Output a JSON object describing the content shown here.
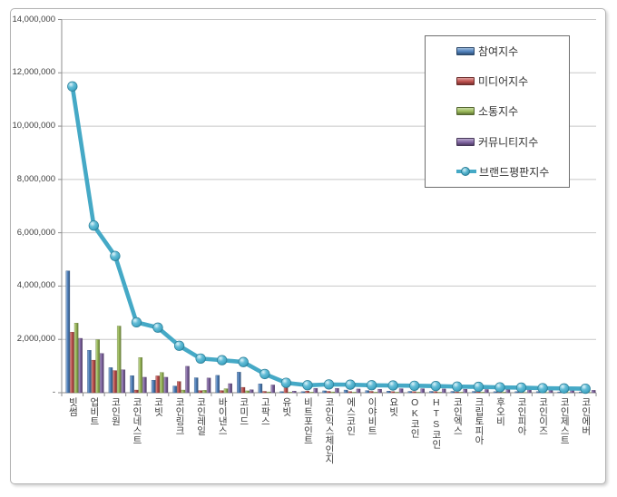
{
  "chart_data": {
    "type": "combo-bar-line",
    "categories": [
      "빗썸",
      "업비트",
      "코인원",
      "코인네스트",
      "코빗",
      "코인링크",
      "코인레일",
      "바이낸스",
      "코미드",
      "고팍스",
      "유빗",
      "비트포인트",
      "코인익스체인지",
      "에스코인",
      "이야비트",
      "요빗",
      "OK코인",
      "HTS코인",
      "코인엑스",
      "크립토피아",
      "후오비",
      "코인피아",
      "코인이즈",
      "코인제스트",
      "코인에버"
    ],
    "series": [
      {
        "key": "participation",
        "name": "참여지수",
        "type": "bar",
        "color": "#4F81BD",
        "values": [
          4570000,
          1590000,
          940000,
          640000,
          470000,
          250000,
          560000,
          650000,
          770000,
          330000,
          40000,
          40000,
          70000,
          100000,
          80000,
          60000,
          50000,
          50000,
          50000,
          50000,
          40000,
          40000,
          40000,
          30000,
          30000
        ]
      },
      {
        "key": "media",
        "name": "미디어지수",
        "type": "bar",
        "color": "#C0504D",
        "values": [
          2270000,
          1220000,
          830000,
          100000,
          630000,
          420000,
          80000,
          80000,
          200000,
          50000,
          250000,
          60000,
          50000,
          40000,
          50000,
          40000,
          40000,
          40000,
          30000,
          30000,
          30000,
          30000,
          20000,
          20000,
          20000
        ]
      },
      {
        "key": "communication",
        "name": "소통지수",
        "type": "bar",
        "color": "#9BBB59",
        "values": [
          2610000,
          1990000,
          2500000,
          1320000,
          760000,
          100000,
          90000,
          150000,
          70000,
          30000,
          20000,
          20000,
          30000,
          20000,
          20000,
          20000,
          20000,
          20000,
          20000,
          20000,
          20000,
          10000,
          10000,
          10000,
          10000
        ]
      },
      {
        "key": "community",
        "name": "커뮤니티지수",
        "type": "bar",
        "color": "#8064A2",
        "values": [
          2040000,
          1470000,
          860000,
          580000,
          580000,
          990000,
          550000,
          340000,
          110000,
          290000,
          60000,
          160000,
          160000,
          140000,
          130000,
          150000,
          150000,
          140000,
          130000,
          120000,
          110000,
          110000,
          100000,
          100000,
          90000
        ]
      },
      {
        "key": "brand",
        "name": "브랜드평판지수",
        "type": "line",
        "color": "#45A9C6",
        "values": [
          11490000,
          6270000,
          5130000,
          2640000,
          2440000,
          1760000,
          1280000,
          1220000,
          1150000,
          700000,
          370000,
          280000,
          310000,
          300000,
          280000,
          270000,
          260000,
          250000,
          230000,
          220000,
          200000,
          190000,
          170000,
          160000,
          150000
        ]
      }
    ],
    "y_axis": {
      "min": 0,
      "max": 14000000,
      "tick_step": 2000000,
      "tick_labels": [
        "-",
        "2,000,000",
        "4,000,000",
        "6,000,000",
        "8,000,000",
        "10,000,000",
        "12,000,000",
        "14,000,000"
      ]
    },
    "grid": true,
    "legend_position": "top-right"
  },
  "colors": {
    "grid": "#c8c8c8",
    "axis": "#8e8e8e",
    "frame_border": "#b3b3b3",
    "legend_border": "#6e6e6e",
    "text": "#3d3d3d"
  }
}
